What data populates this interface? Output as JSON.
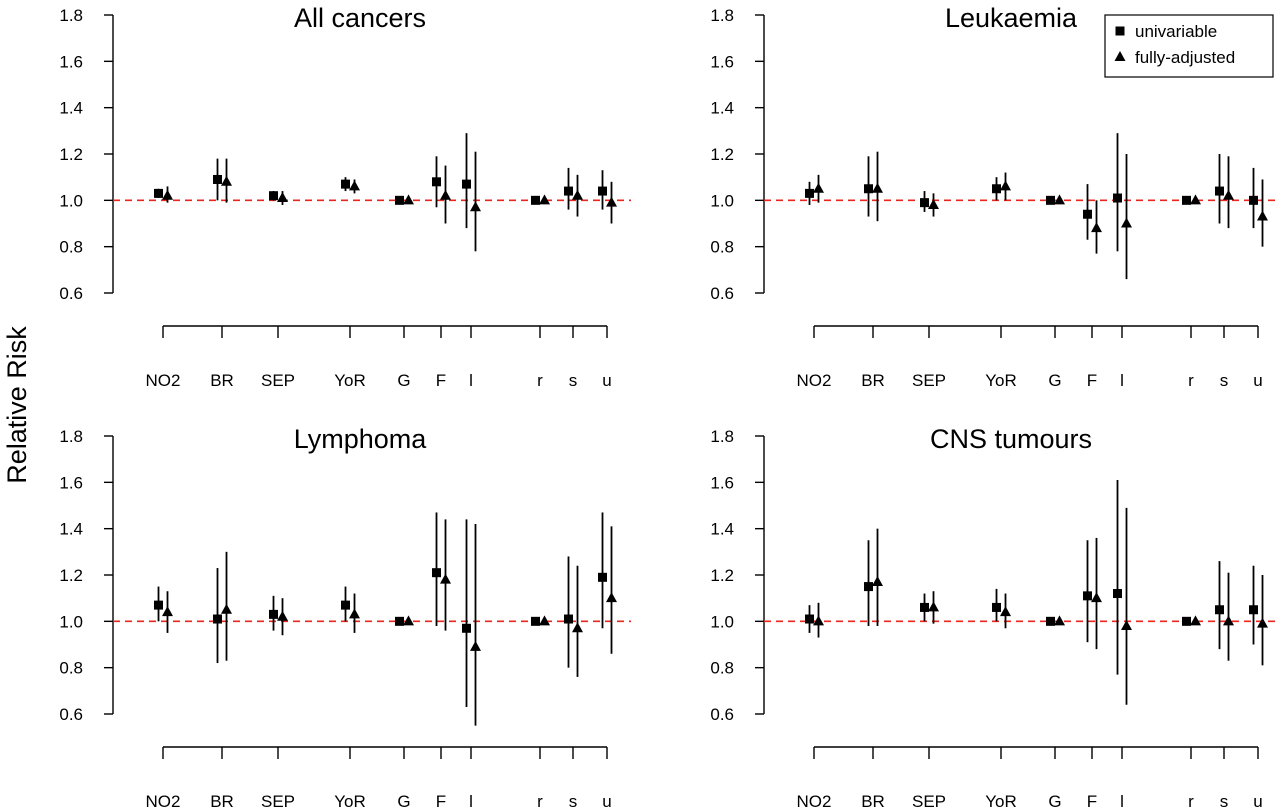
{
  "figure": {
    "ylabel": "Relative Risk"
  },
  "legend": {
    "placement": "top-right",
    "items": [
      {
        "label": "univariable",
        "marker": "square"
      },
      {
        "label": "fully-adjusted",
        "marker": "triangle"
      }
    ]
  },
  "chart_data": [
    {
      "type": "scatter",
      "title": "All cancers",
      "categories": [
        "NO2",
        "BR",
        "SEP",
        "YoR",
        "G",
        "F",
        "l",
        "r",
        "s",
        "u"
      ],
      "ylim": [
        0.6,
        1.8
      ],
      "yticks": [
        "0.6",
        "0.8",
        "1.0",
        "1.2",
        "1.4",
        "1.6",
        "1.8"
      ],
      "reference_line": 1.0,
      "series": [
        {
          "name": "univariable",
          "values": [
            1.03,
            1.09,
            1.02,
            1.07,
            1.0,
            1.08,
            1.07,
            1.0,
            1.04,
            1.04
          ],
          "lower": [
            1.01,
            1.0,
            1.0,
            1.04,
            0.99,
            0.97,
            0.88,
            0.99,
            0.96,
            0.96
          ],
          "upper": [
            1.05,
            1.18,
            1.04,
            1.1,
            1.01,
            1.19,
            1.29,
            1.01,
            1.14,
            1.13
          ]
        },
        {
          "name": "fully-adjusted",
          "values": [
            1.02,
            1.08,
            1.01,
            1.06,
            1.0,
            1.02,
            0.97,
            1.0,
            1.02,
            0.99
          ],
          "lower": [
            0.99,
            0.99,
            0.98,
            1.03,
            0.99,
            0.9,
            0.78,
            0.99,
            0.93,
            0.9
          ],
          "upper": [
            1.06,
            1.18,
            1.04,
            1.09,
            1.01,
            1.15,
            1.21,
            1.01,
            1.11,
            1.08
          ]
        }
      ]
    },
    {
      "type": "scatter",
      "title": "Leukaemia",
      "categories": [
        "NO2",
        "BR",
        "SEP",
        "YoR",
        "G",
        "F",
        "l",
        "r",
        "s",
        "u"
      ],
      "ylim": [
        0.6,
        1.8
      ],
      "yticks": [
        "0.6",
        "0.8",
        "1.0",
        "1.2",
        "1.4",
        "1.6",
        "1.8"
      ],
      "reference_line": 1.0,
      "series": [
        {
          "name": "univariable",
          "values": [
            1.03,
            1.05,
            0.99,
            1.05,
            1.0,
            0.94,
            1.01,
            1.0,
            1.04,
            1.0
          ],
          "lower": [
            0.98,
            0.93,
            0.95,
            1.0,
            0.99,
            0.83,
            0.78,
            0.99,
            0.9,
            0.88
          ],
          "upper": [
            1.08,
            1.19,
            1.04,
            1.1,
            1.01,
            1.07,
            1.29,
            1.01,
            1.2,
            1.14
          ]
        },
        {
          "name": "fully-adjusted",
          "values": [
            1.05,
            1.05,
            0.98,
            1.06,
            1.0,
            0.88,
            0.9,
            1.0,
            1.02,
            0.93
          ],
          "lower": [
            0.99,
            0.91,
            0.93,
            1.0,
            0.99,
            0.77,
            0.66,
            0.99,
            0.88,
            0.8
          ],
          "upper": [
            1.11,
            1.21,
            1.03,
            1.12,
            1.01,
            1.0,
            1.2,
            1.01,
            1.19,
            1.09
          ]
        }
      ]
    },
    {
      "type": "scatter",
      "title": "Lymphoma",
      "categories": [
        "NO2",
        "BR",
        "SEP",
        "YoR",
        "G",
        "F",
        "l",
        "r",
        "s",
        "u"
      ],
      "ylim": [
        0.6,
        1.8
      ],
      "yticks": [
        "0.6",
        "0.8",
        "1.0",
        "1.2",
        "1.4",
        "1.6",
        "1.8"
      ],
      "reference_line": 1.0,
      "series": [
        {
          "name": "univariable",
          "values": [
            1.07,
            1.01,
            1.03,
            1.07,
            1.0,
            1.21,
            0.97,
            1.0,
            1.01,
            1.19
          ],
          "lower": [
            1.0,
            0.82,
            0.96,
            1.0,
            0.99,
            0.98,
            0.63,
            0.99,
            0.8,
            0.97
          ],
          "upper": [
            1.15,
            1.23,
            1.11,
            1.15,
            1.01,
            1.47,
            1.44,
            1.01,
            1.28,
            1.47
          ]
        },
        {
          "name": "fully-adjusted",
          "values": [
            1.04,
            1.05,
            1.02,
            1.03,
            1.0,
            1.18,
            0.89,
            1.0,
            0.97,
            1.1
          ],
          "lower": [
            0.95,
            0.83,
            0.94,
            0.95,
            0.99,
            0.96,
            0.55,
            0.99,
            0.76,
            0.86
          ],
          "upper": [
            1.13,
            1.3,
            1.1,
            1.12,
            1.01,
            1.44,
            1.42,
            1.01,
            1.24,
            1.41
          ]
        }
      ]
    },
    {
      "type": "scatter",
      "title": "CNS tumours",
      "categories": [
        "NO2",
        "BR",
        "SEP",
        "YoR",
        "G",
        "F",
        "l",
        "r",
        "s",
        "u"
      ],
      "ylim": [
        0.6,
        1.8
      ],
      "yticks": [
        "0.6",
        "0.8",
        "1.0",
        "1.2",
        "1.4",
        "1.6",
        "1.8"
      ],
      "reference_line": 1.0,
      "series": [
        {
          "name": "univariable",
          "values": [
            1.01,
            1.15,
            1.06,
            1.06,
            1.0,
            1.11,
            1.12,
            1.0,
            1.05,
            1.05
          ],
          "lower": [
            0.95,
            0.98,
            1.0,
            1.0,
            0.99,
            0.91,
            0.77,
            0.99,
            0.88,
            0.9
          ],
          "upper": [
            1.07,
            1.35,
            1.12,
            1.14,
            1.01,
            1.35,
            1.61,
            1.01,
            1.26,
            1.24
          ]
        },
        {
          "name": "fully-adjusted",
          "values": [
            1.0,
            1.17,
            1.06,
            1.04,
            1.0,
            1.1,
            0.98,
            1.0,
            1.0,
            0.99
          ],
          "lower": [
            0.93,
            0.98,
            0.99,
            0.97,
            0.99,
            0.88,
            0.64,
            0.99,
            0.83,
            0.81
          ],
          "upper": [
            1.08,
            1.4,
            1.13,
            1.12,
            1.01,
            1.36,
            1.49,
            1.01,
            1.21,
            1.2
          ]
        }
      ]
    }
  ]
}
